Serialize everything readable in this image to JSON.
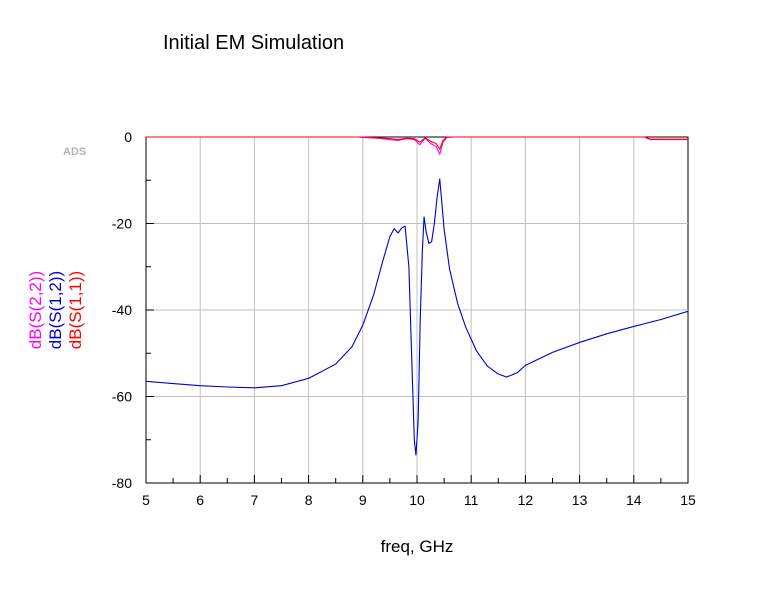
{
  "chart_data": {
    "type": "line",
    "title": "Initial EM Simulation",
    "xlabel": "freq, GHz",
    "watermark": "ADS",
    "xlim": [
      5,
      15
    ],
    "ylim": [
      -80,
      0
    ],
    "x_ticks": [
      5,
      6,
      7,
      8,
      9,
      10,
      11,
      12,
      13,
      14,
      15
    ],
    "y_ticks": [
      0,
      -20,
      -40,
      -60,
      -80
    ],
    "x_tick_labels": [
      "5",
      "6",
      "7",
      "8",
      "9",
      "10",
      "11",
      "12",
      "13",
      "14",
      "15"
    ],
    "y_tick_labels": [
      "0",
      "-20",
      "-40",
      "-60",
      "-80"
    ],
    "grid": true,
    "series": [
      {
        "name": "dB(S(2,2))",
        "color": "#ff00ff",
        "x": [
          5,
          8.9,
          9.0,
          9.3,
          9.5,
          9.65,
          9.8,
          9.95,
          10.05,
          10.15,
          10.25,
          10.35,
          10.42,
          10.48,
          10.55,
          10.7,
          11.0,
          12.0,
          13.0,
          14.2,
          14.3,
          15
        ],
        "y": [
          0,
          0,
          -0.1,
          -0.3,
          -0.6,
          -0.8,
          -0.4,
          -0.6,
          -1.8,
          -0.3,
          -1.5,
          -2.2,
          -4.0,
          -1.2,
          -0.1,
          0,
          0,
          0,
          0,
          0,
          -0.6,
          -0.6
        ]
      },
      {
        "name": "dB(S(1,2))",
        "color": "#0000cc",
        "x": [
          5,
          5.5,
          6,
          6.5,
          7,
          7.5,
          8,
          8.5,
          8.8,
          9.0,
          9.2,
          9.35,
          9.5,
          9.58,
          9.65,
          9.72,
          9.78,
          9.85,
          9.9,
          9.95,
          9.98,
          10.02,
          10.06,
          10.1,
          10.13,
          10.17,
          10.22,
          10.27,
          10.32,
          10.37,
          10.42,
          10.45,
          10.5,
          10.6,
          10.75,
          10.9,
          11.1,
          11.3,
          11.5,
          11.65,
          11.85,
          12,
          12.5,
          13,
          13.5,
          14,
          14.5,
          15
        ],
        "y": [
          -56.5,
          -57,
          -57.5,
          -57.8,
          -58,
          -57.5,
          -55.8,
          -52.5,
          -48.5,
          -43.5,
          -36.5,
          -29.5,
          -23,
          -21.2,
          -22.2,
          -21,
          -20.6,
          -30,
          -50,
          -70,
          -73.5,
          -66,
          -42,
          -26,
          -18.5,
          -22,
          -24.6,
          -24.2,
          -20,
          -14,
          -9.7,
          -14,
          -21.3,
          -30.5,
          -38.5,
          -44,
          -49.5,
          -53,
          -54.8,
          -55.5,
          -54.5,
          -52.8,
          -49.8,
          -47.5,
          -45.5,
          -43.8,
          -42.2,
          -40.3
        ]
      },
      {
        "name": "dB(S(1,1))",
        "color": "#ff0000",
        "x": [
          5,
          9.0,
          9.3,
          9.5,
          9.65,
          9.8,
          9.95,
          10.05,
          10.15,
          10.25,
          10.35,
          10.42,
          10.48,
          10.55,
          14.2,
          14.3,
          15
        ],
        "y": [
          0,
          0,
          -0.2,
          -0.4,
          -0.6,
          -0.3,
          -0.4,
          -1.2,
          -0.2,
          -1.0,
          -1.5,
          -2.8,
          -0.8,
          0,
          0,
          -0.5,
          -0.5
        ]
      }
    ]
  }
}
